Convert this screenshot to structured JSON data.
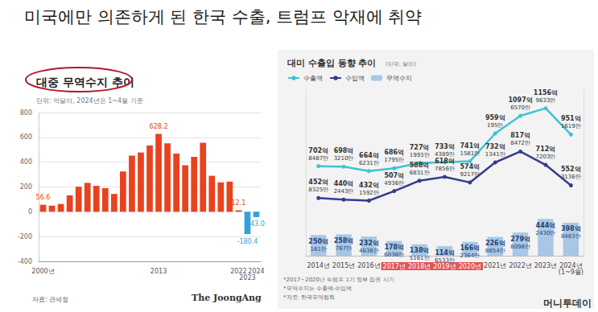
{
  "title": "미국에만 의존하게 된 한국 수출, 트럼프 악재에 취약",
  "footer": "머니투데이",
  "chart_data": [
    {
      "type": "bar",
      "title": "대중 무역수지 추이",
      "subtitle": "단위: 억달러, 2024년은 1~4월 기준",
      "categories": [
        "2000년",
        null,
        null,
        null,
        null,
        null,
        null,
        null,
        null,
        null,
        null,
        null,
        null,
        "2013",
        null,
        null,
        null,
        null,
        null,
        null,
        null,
        null,
        "2022",
        "2023",
        "2024"
      ],
      "values": [
        56.6,
        49,
        63,
        132,
        202,
        233,
        209,
        190,
        144,
        325,
        453,
        478,
        535,
        628.2,
        552,
        469,
        375,
        443,
        556,
        290,
        237,
        243,
        12.1,
        -180.4,
        -43.0
      ],
      "value_labels": [
        "56.6",
        null,
        null,
        null,
        null,
        null,
        null,
        null,
        null,
        null,
        null,
        null,
        null,
        "628.2",
        null,
        null,
        null,
        null,
        null,
        null,
        null,
        null,
        "12.1",
        "-180.4",
        "-43.0"
      ],
      "colors": [
        "#e8431f",
        "#e8431f",
        "#e8431f",
        "#e8431f",
        "#e8431f",
        "#e8431f",
        "#e8431f",
        "#e8431f",
        "#e8431f",
        "#e8431f",
        "#e8431f",
        "#e8431f",
        "#e8431f",
        "#e8431f",
        "#e8431f",
        "#e8431f",
        "#e8431f",
        "#e8431f",
        "#e8431f",
        "#e8431f",
        "#e8431f",
        "#e8431f",
        "#e8431f",
        "#2fa3d9",
        "#2fa3d9"
      ],
      "data_labels": true,
      "ylim": [
        -400,
        800
      ],
      "yticks": [
        -400,
        -200,
        0,
        200,
        400,
        600,
        800
      ],
      "grid": true,
      "source": "자료: 관세청",
      "credit": "The JoongAng"
    },
    {
      "type": "line",
      "title": "대미 수출입 동향 추이",
      "subtitle": "(단위: 달러)",
      "categories": [
        "2014년",
        "2015년",
        "2016년",
        "2017년",
        "2018년",
        "2019년",
        "2020년",
        "2021년",
        "2022년",
        "2023년",
        "2024년 (1~9월)"
      ],
      "highlighted_categories": [
        "2017년",
        "2018년",
        "2019년",
        "2020년"
      ],
      "series": [
        {
          "name": "수출액",
          "type": "line",
          "color": "#3ec3d3",
          "marker": "circle",
          "values": [
            70284870000,
            69832100000,
            66462310000,
            68617950000,
            72719930000,
            73343890000,
            74115810000,
            95901950000,
            109765700000,
            115696330000,
            95116190000
          ],
          "value_labels": [
            "702억 8487만",
            "698억 3210만",
            "664억 6231만",
            "686억 1795만",
            "727억 1993만",
            "733억 4389만",
            "741억 1581만",
            "959억 195만",
            "1097억 6570만",
            "1156억 9633만",
            "951억 1619만"
          ]
        },
        {
          "name": "수입액",
          "type": "line",
          "color": "#363c8c",
          "marker": "circle",
          "values": [
            45283250000,
            44024430000,
            43215920000,
            50749360000,
            58868310000,
            61878560000,
            57492170000,
            73213410000,
            81784720000,
            71272030000,
            55231360000
          ],
          "value_labels": [
            "452억 8325만",
            "440억 2443만",
            "432억 1592만",
            "507억 4936만",
            "588억 6831만",
            "618억 7856만",
            "574억 9217만",
            "732억 1341만",
            "817억 8472만",
            "712억 7203만",
            "552억 3136만"
          ]
        },
        {
          "name": "무역수지",
          "type": "bar",
          "axis": "y2",
          "color": "#a8c7e6",
          "values": [
            25001610000,
            25807670000,
            23246380000,
            17860360000,
            13851610000,
            11465330000,
            16623640000,
            22688540000,
            27980980000,
            44424300000,
            39884830000
          ],
          "value_labels": [
            "250억 161만",
            "258억 767만",
            "232억 4638만",
            "178억 6036만",
            "138억 5161만",
            "114억 6533만",
            "166억 2364만",
            "226억 8854만",
            "279억 8098만",
            "444억 2430만",
            "398억 8483만"
          ]
        }
      ],
      "ylim": [
        0,
        130000000000
      ],
      "yticks": [],
      "y2lim": [
        0,
        200000000000
      ],
      "y2ticks": [],
      "tick_labels": "x",
      "data_labels": true,
      "legend": "upper-left",
      "grid": false,
      "notes": [
        "*2017~2020년 트럼프 1기 정부 집권 시기",
        "*무역수지는 수출액-수입액",
        "*자료: 한국무역협회"
      ]
    }
  ]
}
